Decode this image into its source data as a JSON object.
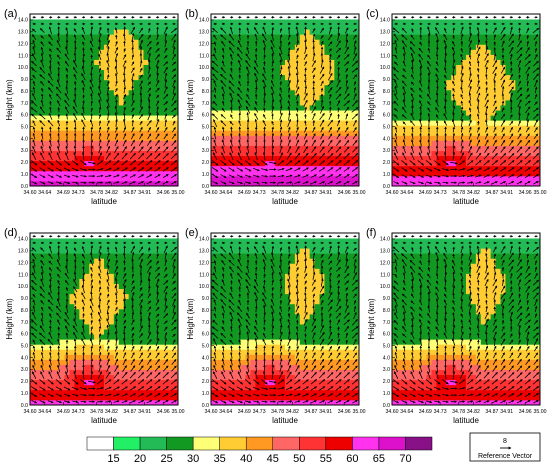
{
  "chart_data": {
    "type": "heatmap",
    "panels": [
      {
        "label": "(a)",
        "xlabel": "latitude",
        "ylabel": "Height (km)"
      },
      {
        "label": "(b)",
        "xlabel": "latitude",
        "ylabel": "Height (km)"
      },
      {
        "label": "(c)",
        "xlabel": "latitude",
        "ylabel": "Height (km)"
      },
      {
        "label": "(d)",
        "xlabel": "latitude",
        "ylabel": "Height (km)"
      },
      {
        "label": "(e)",
        "xlabel": "latitude",
        "ylabel": "Height (km)"
      },
      {
        "label": "(f)",
        "xlabel": "latitude",
        "ylabel": "Height (km)"
      }
    ],
    "x_ticks": [
      "34.60",
      "34.64",
      "34.69",
      "34.73",
      "34.78",
      "34.82",
      "34.87",
      "34.91",
      "34.96",
      "35.00"
    ],
    "y_ticks": [
      "0.0",
      "1.0",
      "2.0",
      "3.0",
      "4.0",
      "5.0",
      "6.0",
      "7.0",
      "8.0",
      "9.0",
      "10.0",
      "11.0",
      "12.0",
      "13.0",
      "14.0"
    ],
    "xlim": [
      34.6,
      35.0
    ],
    "ylim": [
      0.0,
      14.5
    ],
    "colorbar": {
      "labels": [
        "15",
        "20",
        "25",
        "30",
        "35",
        "40",
        "45",
        "50",
        "55",
        "60",
        "65",
        "70"
      ],
      "colors": [
        "#ffffff",
        "#22ee66",
        "#22bb55",
        "#119922",
        "#ffff77",
        "#ffcc33",
        "#ff9922",
        "#ff6666",
        "#ff3333",
        "#ee0000",
        "#ff33ee",
        "#dd11cc",
        "#881188"
      ]
    },
    "reference_vector": {
      "value": "8",
      "label": "Reference Vector"
    },
    "field_contours": {
      "description_levels": [
        15,
        20,
        25,
        30,
        35,
        40,
        45,
        50,
        55,
        60
      ]
    }
  }
}
